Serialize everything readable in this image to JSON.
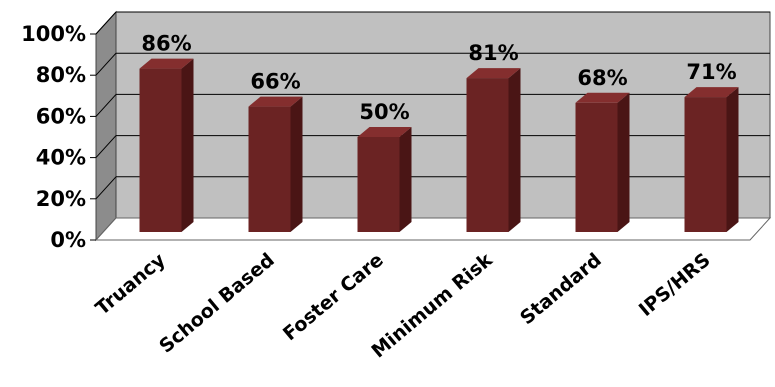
{
  "chart_data": {
    "type": "bar",
    "categories": [
      "Truancy",
      "School Based",
      "Foster Care",
      "Minimum Risk",
      "Standard",
      "IPS/HRS"
    ],
    "values": [
      86,
      66,
      50,
      81,
      68,
      71
    ],
    "data_labels": [
      "86%",
      "66%",
      "50%",
      "81%",
      "68%",
      "71%"
    ],
    "y_ticks": [
      0,
      20,
      40,
      60,
      80,
      100
    ],
    "y_tick_labels": [
      "0%",
      "20%",
      "40%",
      "60%",
      "80%",
      "100%"
    ],
    "ylim": [
      0,
      100
    ],
    "grid": true,
    "legend": "none",
    "style": "3d-column",
    "title": "",
    "xlabel": "",
    "ylabel": "",
    "colors": {
      "bar_front": "#6b2323",
      "bar_side": "#4a1515",
      "bar_top": "#842e2e",
      "wall": "#c0c0c0",
      "side_wall": "#8c8c8c",
      "floor": "#ffffff",
      "gridline": "#000000"
    }
  }
}
